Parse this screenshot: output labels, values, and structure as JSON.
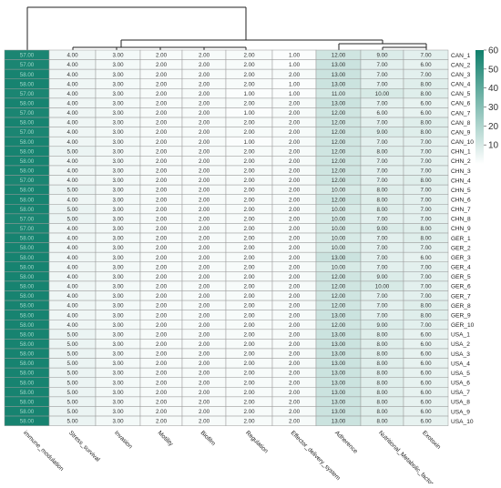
{
  "chart_data": {
    "type": "heatmap",
    "columns": [
      "immune_modulation",
      "Stress_survival",
      "Invasion",
      "Motility",
      "Biofilm",
      "Regulation",
      "Effector_delivery_system",
      "Adherence",
      "Nutritional_Metabolic_factor",
      "Exotoxin"
    ],
    "rows": [
      "CAN_1",
      "CAN_2",
      "CAN_3",
      "CAN_4",
      "CAN_5",
      "CAN_6",
      "CAN_7",
      "CAN_8",
      "CAN_9",
      "CAN_10",
      "CHN_1",
      "CHN_2",
      "CHN_3",
      "CHN_4",
      "CHN_5",
      "CHN_6",
      "CHN_7",
      "CHN_8",
      "CHN_9",
      "GER_1",
      "GER_2",
      "GER_3",
      "GER_4",
      "GER_5",
      "GER_6",
      "GER_7",
      "GER_8",
      "GER_9",
      "GER_10",
      "USA_1",
      "USA_2",
      "USA_3",
      "USA_4",
      "USA_5",
      "USA_6",
      "USA_7",
      "USA_8",
      "USA_9",
      "USA_10"
    ],
    "values": [
      [
        57,
        4,
        3,
        2,
        2,
        2,
        1,
        12,
        9,
        7
      ],
      [
        57,
        4,
        3,
        2,
        2,
        2,
        1,
        13,
        7,
        6
      ],
      [
        58,
        4,
        3,
        2,
        2,
        2,
        2,
        13,
        7,
        7
      ],
      [
        58,
        4,
        3,
        2,
        2,
        2,
        1,
        13,
        7,
        8
      ],
      [
        57,
        4,
        3,
        2,
        2,
        1,
        1,
        11,
        10,
        8
      ],
      [
        58,
        4,
        3,
        2,
        2,
        2,
        2,
        13,
        7,
        6
      ],
      [
        57,
        4,
        3,
        2,
        2,
        1,
        2,
        12,
        6,
        6
      ],
      [
        58,
        4,
        3,
        2,
        2,
        2,
        2,
        12,
        7,
        8
      ],
      [
        57,
        4,
        3,
        2,
        2,
        2,
        2,
        12,
        9,
        8
      ],
      [
        58,
        4,
        3,
        2,
        2,
        1,
        2,
        12,
        7,
        7
      ],
      [
        58,
        5,
        3,
        2,
        2,
        2,
        2,
        12,
        8,
        7
      ],
      [
        58,
        4,
        3,
        2,
        2,
        2,
        2,
        12,
        7,
        7
      ],
      [
        58,
        4,
        3,
        2,
        2,
        2,
        2,
        12,
        7,
        7
      ],
      [
        57,
        4,
        3,
        2,
        2,
        2,
        2,
        12,
        7,
        8
      ],
      [
        58,
        5,
        3,
        2,
        2,
        2,
        2,
        10,
        8,
        7
      ],
      [
        58,
        4,
        3,
        2,
        2,
        2,
        2,
        12,
        8,
        7
      ],
      [
        58,
        5,
        3,
        2,
        2,
        2,
        2,
        10,
        8,
        7
      ],
      [
        57,
        5,
        3,
        2,
        2,
        2,
        2,
        10,
        7,
        7
      ],
      [
        57,
        4,
        3,
        2,
        2,
        2,
        2,
        10,
        9,
        8
      ],
      [
        58,
        4,
        3,
        2,
        2,
        2,
        2,
        10,
        7,
        8
      ],
      [
        58,
        4,
        3,
        2,
        2,
        2,
        2,
        10,
        7,
        7
      ],
      [
        58,
        4,
        3,
        2,
        2,
        2,
        2,
        13,
        7,
        6
      ],
      [
        58,
        4,
        3,
        2,
        2,
        2,
        2,
        10,
        7,
        7
      ],
      [
        58,
        4,
        3,
        2,
        2,
        2,
        2,
        12,
        9,
        7
      ],
      [
        58,
        4,
        3,
        2,
        2,
        2,
        2,
        12,
        10,
        7
      ],
      [
        58,
        4,
        3,
        2,
        2,
        2,
        2,
        12,
        7,
        7
      ],
      [
        58,
        4,
        3,
        2,
        2,
        2,
        2,
        12,
        7,
        8
      ],
      [
        58,
        4,
        3,
        2,
        2,
        2,
        2,
        13,
        7,
        8
      ],
      [
        58,
        4,
        3,
        2,
        2,
        2,
        2,
        12,
        9,
        7
      ],
      [
        58,
        5,
        3,
        2,
        2,
        2,
        2,
        13,
        8,
        6
      ],
      [
        58,
        5,
        3,
        2,
        2,
        2,
        2,
        13,
        8,
        6
      ],
      [
        58,
        5,
        3,
        2,
        2,
        2,
        2,
        13,
        8,
        6
      ],
      [
        58,
        5,
        3,
        2,
        2,
        2,
        2,
        13,
        8,
        6
      ],
      [
        58,
        5,
        3,
        2,
        2,
        2,
        2,
        13,
        8,
        6
      ],
      [
        58,
        5,
        3,
        2,
        2,
        2,
        2,
        13,
        8,
        6
      ],
      [
        58,
        5,
        3,
        2,
        2,
        2,
        2,
        13,
        8,
        6
      ],
      [
        58,
        5,
        3,
        2,
        2,
        2,
        2,
        13,
        8,
        6
      ],
      [
        58,
        5,
        3,
        2,
        2,
        2,
        2,
        13,
        8,
        6
      ],
      [
        58,
        5,
        3,
        2,
        2,
        2,
        2,
        13,
        8,
        6
      ]
    ],
    "colorbar": {
      "ticks": [
        10,
        20,
        30,
        40,
        50,
        60
      ],
      "range": [
        0,
        60
      ],
      "low_color": "#ffffff",
      "high_color": "#0f7f6b"
    },
    "dendrogram": "column clustering tree (shown above the heatmap)"
  }
}
